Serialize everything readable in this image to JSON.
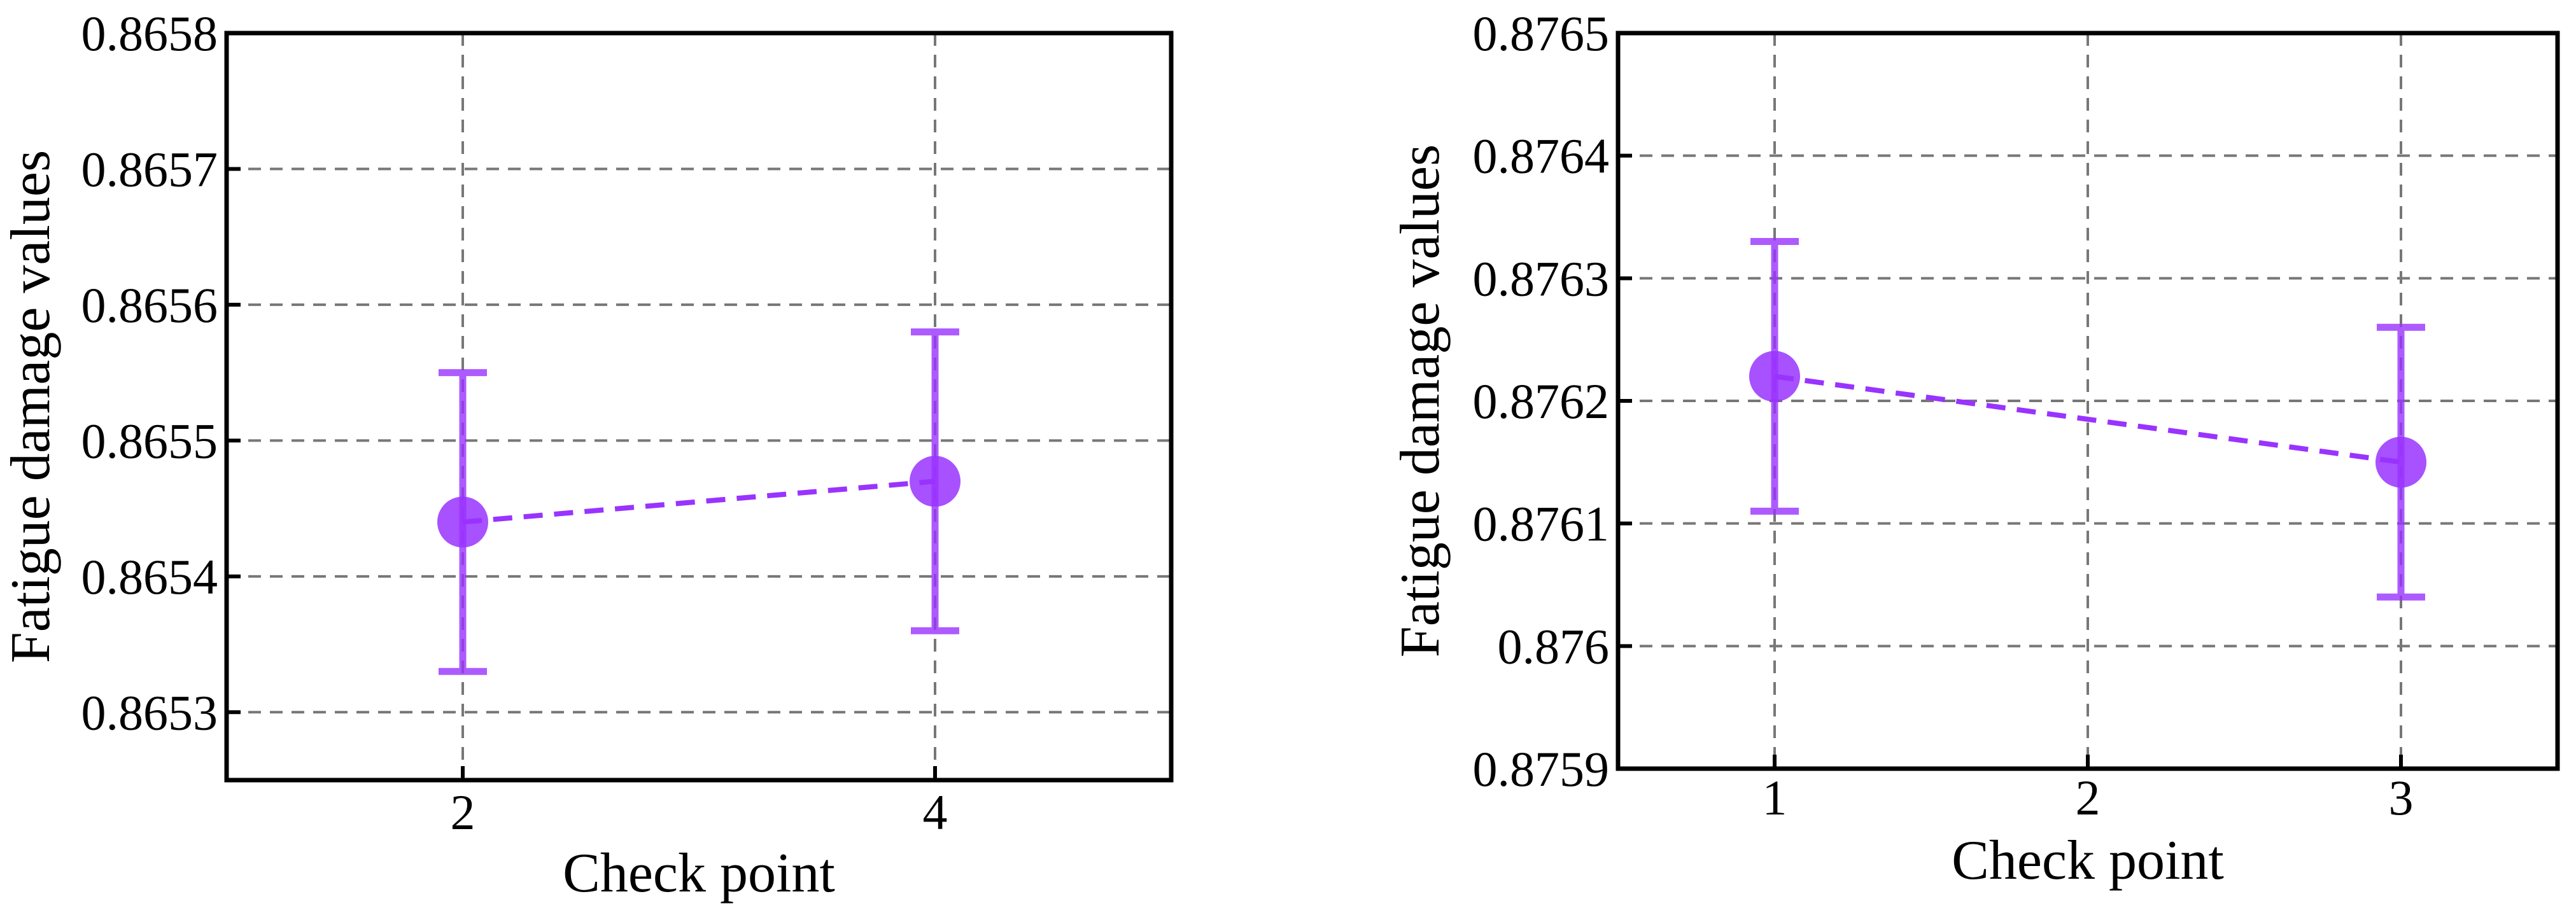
{
  "chart_data": [
    {
      "type": "line",
      "x_label": "Check point",
      "y_label": "Fatigue damage values",
      "x": [
        2,
        4
      ],
      "values": [
        0.86544,
        0.86547
      ],
      "errors": [
        0.00011,
        0.00011
      ],
      "color": "#9933ff",
      "xlim": [
        1,
        5
      ],
      "xticks": [
        2,
        4
      ],
      "ylim": [
        0.86525,
        0.8658
      ],
      "yticks": [
        0.8653,
        0.8654,
        0.8655,
        0.8656,
        0.8657,
        0.8658
      ],
      "grid": true
    },
    {
      "type": "line",
      "x_label": "Check point",
      "y_label": "Fatigue damage values",
      "x": [
        1,
        3
      ],
      "values": [
        0.87622,
        0.87615
      ],
      "errors": [
        0.00011,
        0.00011
      ],
      "color": "#9933ff",
      "xlim": [
        0.5,
        3.5
      ],
      "xticks": [
        1,
        2,
        3
      ],
      "ylim": [
        0.8759,
        0.8765
      ],
      "yticks": [
        0.8759,
        0.876,
        0.8761,
        0.8762,
        0.8763,
        0.8764,
        0.8765
      ],
      "grid": true
    }
  ]
}
